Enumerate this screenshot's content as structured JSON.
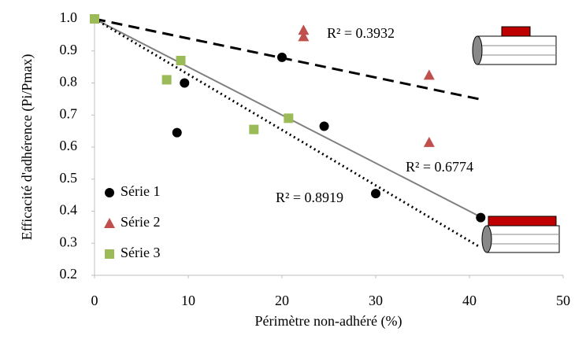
{
  "chart_data": {
    "type": "scatter",
    "x_label": "Périmètre non-adhéré (%)",
    "y_label": "Efficacité d'adhérence (Pi/Pmax)",
    "xlim": [
      0,
      50
    ],
    "xticks": [
      0,
      10,
      20,
      30,
      40,
      50
    ],
    "ylim": [
      0.2,
      1.0
    ],
    "yticks": [
      0.2,
      0.3,
      0.4,
      0.5,
      0.6,
      0.7,
      0.8,
      0.9,
      {
        "value": 1.0,
        "label": "1.0"
      }
    ],
    "legend": "lower left",
    "series": [
      {
        "name": "Série 1",
        "color": "#000000",
        "marker": "circle",
        "x": [
          8.8,
          9.6,
          20,
          24.5,
          30,
          41.2
        ],
        "y": [
          0.645,
          0.8,
          0.88,
          0.665,
          0.455,
          0.38
        ]
      },
      {
        "name": "Série 2",
        "color": "#c0504d",
        "marker": "triangle",
        "x": [
          22.3,
          22.3,
          35.7,
          35.7
        ],
        "y": [
          0.965,
          0.945,
          0.825,
          0.615
        ]
      },
      {
        "name": "Série 3",
        "color": "#9bbb59",
        "marker": "square",
        "x": [
          0,
          7.7,
          9.2,
          17,
          20.7
        ],
        "y": [
          1.0,
          0.81,
          0.87,
          0.655,
          0.69
        ]
      }
    ],
    "trendlines": [
      {
        "x": [
          0,
          41
        ],
        "y": [
          1.0,
          0.75
        ],
        "style": "dashed",
        "color": "#000000",
        "label": "R² = 0.3932"
      },
      {
        "x": [
          0,
          41
        ],
        "y": [
          1.0,
          0.385
        ],
        "style": "solid",
        "color": "#808080",
        "label": "R² = 0.6774"
      },
      {
        "x": [
          0,
          41
        ],
        "y": [
          1.0,
          0.29
        ],
        "style": "dotted",
        "color": "#000000",
        "label": "R² = 0.8919"
      }
    ]
  }
}
